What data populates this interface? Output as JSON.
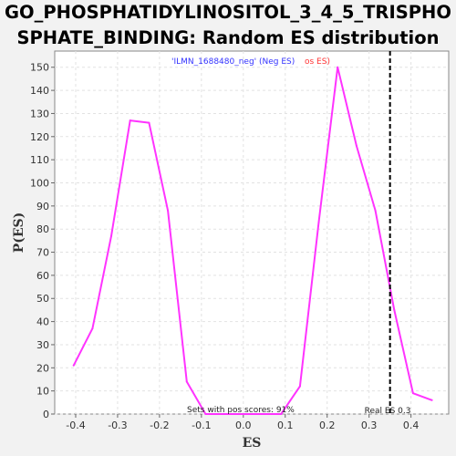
{
  "title": {
    "line1": "GO_PHOSPHATIDYLINOSITOL_3_4_5_TRISPHO",
    "line2": "SPHATE_BINDING: Random ES distribution"
  },
  "chart_data": {
    "type": "line",
    "title": "GO_PHOSPHATIDYLINOSITOL_3_4_5_TRISPHOSPHATE_BINDING: Random ES distribution",
    "xlabel": "ES",
    "ylabel": "P(ES)",
    "xlim": [
      -0.45,
      0.49
    ],
    "ylim": [
      0,
      157
    ],
    "x_ticks": [
      -0.4,
      -0.3,
      -0.2,
      -0.1,
      0.0,
      0.1,
      0.2,
      0.3,
      0.4
    ],
    "x_tick_labels": [
      "-0.4",
      "-0.3",
      "-0.2",
      "-0.1",
      "0.0",
      "0.1",
      "0.2",
      "0.3",
      "0.4"
    ],
    "y_ticks": [
      0,
      10,
      20,
      30,
      40,
      50,
      60,
      70,
      80,
      90,
      100,
      110,
      120,
      130,
      140,
      150
    ],
    "y_tick_labels": [
      "0",
      "10",
      "20",
      "30",
      "40",
      "50",
      "60",
      "70",
      "80",
      "90",
      "100",
      "110",
      "120",
      "130",
      "140",
      "150"
    ],
    "grid": true,
    "legend": {
      "placement": "top-center",
      "neg_text": "'ILMN_1688480_neg' (Neg ES)",
      "pos_text": "os ES)",
      "neg_color": "#3333ff",
      "pos_color": "#ff3333"
    },
    "series": [
      {
        "color": "#ff33ff",
        "x": [
          -0.405,
          -0.36,
          -0.315,
          -0.27,
          -0.225,
          -0.18,
          -0.135,
          -0.09,
          -0.045,
          0.0,
          0.045,
          0.09,
          0.135,
          0.18,
          0.225,
          0.27,
          0.315,
          0.36,
          0.405,
          0.45
        ],
        "y": [
          21,
          37,
          77,
          127,
          126,
          88,
          14,
          0,
          0,
          0,
          0,
          0,
          12,
          83,
          150,
          116,
          88,
          45,
          9,
          6
        ]
      }
    ],
    "reference_line": {
      "x": 0.35,
      "style": "dashed",
      "color": "#000000",
      "label": "Real ES 0.3"
    },
    "annotation": "Sets with pos scores: 91%"
  }
}
